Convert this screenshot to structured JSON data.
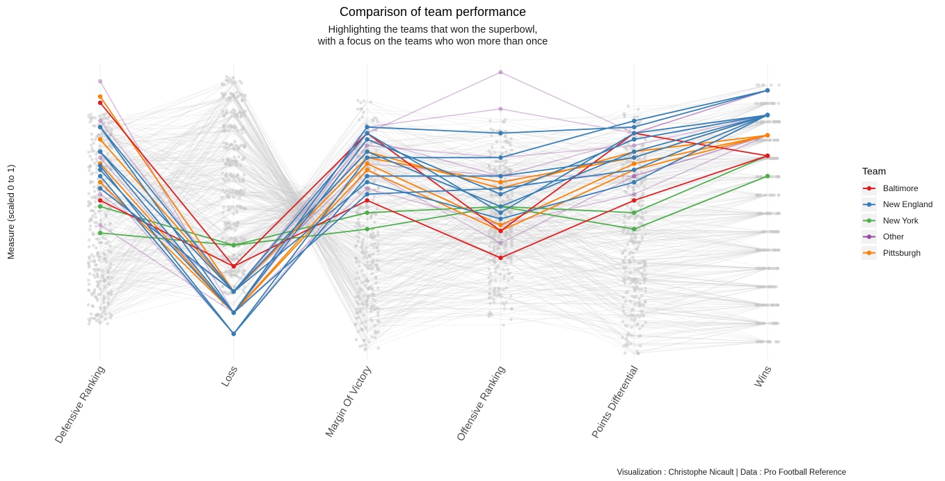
{
  "chart_data": {
    "type": "parallel-coordinates",
    "title": "Comparison of team performance",
    "subtitle_lines": [
      "Highlighting the teams that won the superbowl,",
      "with a focus on the teams who won more than once"
    ],
    "ylabel": "Measure (scaled 0 to 1)",
    "ylim": [
      0,
      1
    ],
    "caption": "Visualization : Christophe Nicault | Data : Pro Football Reference",
    "dimensions": [
      "Defensive Ranking",
      "Loss",
      "Margin Of Victory",
      "Offensive Ranking",
      "Points Differential",
      "Wins"
    ],
    "legend": {
      "title": "Team",
      "position": "right",
      "entries": [
        {
          "name": "Baltimore",
          "color": "#e41a1c"
        },
        {
          "name": "New England",
          "color": "#377eb8"
        },
        {
          "name": "New York",
          "color": "#4daf4a"
        },
        {
          "name": "Other",
          "color": "#984ea3"
        },
        {
          "name": "Pittsburgh",
          "color": "#ff7f00"
        }
      ]
    },
    "background_series_color": "#c8c8c8",
    "highlighted_series": [
      {
        "team": "Baltimore",
        "values": [
          0.875,
          0.317,
          0.771,
          0.438,
          0.771,
          0.694
        ]
      },
      {
        "team": "Baltimore",
        "values": [
          0.542,
          0.317,
          0.542,
          0.346,
          0.542,
          0.694
        ]
      },
      {
        "team": "New England",
        "values": [
          0.792,
          0.159,
          0.792,
          0.771,
          0.792,
          0.917
        ]
      },
      {
        "team": "New England",
        "values": [
          0.66,
          0.087,
          0.688,
          0.688,
          0.813,
          0.917
        ]
      },
      {
        "team": "New England",
        "values": [
          0.625,
          0.087,
          0.625,
          0.625,
          0.688,
          0.833
        ]
      },
      {
        "team": "New England",
        "values": [
          0.708,
          0.159,
          0.75,
          0.563,
          0.75,
          0.833
        ]
      },
      {
        "team": "New England",
        "values": [
          0.646,
          0.159,
          0.563,
          0.583,
          0.646,
          0.833
        ]
      },
      {
        "team": "New England",
        "values": [
          0.583,
          0.231,
          0.604,
          0.479,
          0.604,
          0.833
        ]
      },
      {
        "team": "New England",
        "values": [
          0.708,
          0.231,
          0.708,
          0.521,
          0.708,
          0.833
        ]
      },
      {
        "team": "New England",
        "values": [
          0.792,
          0.231,
          0.771,
          0.5,
          0.771,
          0.833
        ]
      },
      {
        "team": "New York",
        "values": [
          0.521,
          0.389,
          0.5,
          0.521,
          0.5,
          0.694
        ]
      },
      {
        "team": "New York",
        "values": [
          0.431,
          0.389,
          0.444,
          0.521,
          0.444,
          0.625
        ]
      },
      {
        "team": "Other",
        "values": [
          0.948,
          0.159,
          0.771,
          0.979,
          0.771,
          0.917
        ]
      },
      {
        "team": "Other",
        "values": [
          0.896,
          0.231,
          0.792,
          0.854,
          0.771,
          0.917
        ]
      },
      {
        "team": "Other",
        "values": [
          0.813,
          0.231,
          0.75,
          0.625,
          0.75,
          0.833
        ]
      },
      {
        "team": "Other",
        "values": [
          0.688,
          0.159,
          0.729,
          0.688,
          0.729,
          0.833
        ]
      },
      {
        "team": "Other",
        "values": [
          0.604,
          0.087,
          0.646,
          0.396,
          0.625,
          0.764
        ]
      },
      {
        "team": "Other",
        "values": [
          0.458,
          0.159,
          0.583,
          0.458,
          0.563,
          0.764
        ]
      },
      {
        "team": "Other",
        "values": [
          0.563,
          0.231,
          0.667,
          0.625,
          0.625,
          0.764
        ]
      },
      {
        "team": "Pittsburgh",
        "values": [
          0.896,
          0.231,
          0.688,
          0.604,
          0.688,
          0.833
        ]
      },
      {
        "team": "Pittsburgh",
        "values": [
          0.75,
          0.231,
          0.708,
          0.583,
          0.708,
          0.764
        ]
      },
      {
        "team": "Pittsburgh",
        "values": [
          0.667,
          0.159,
          0.667,
          0.458,
          0.667,
          0.764
        ]
      },
      {
        "team": "Pittsburgh",
        "values": [
          0.604,
          0.159,
          0.646,
          0.438,
          0.646,
          0.764
        ]
      }
    ]
  }
}
